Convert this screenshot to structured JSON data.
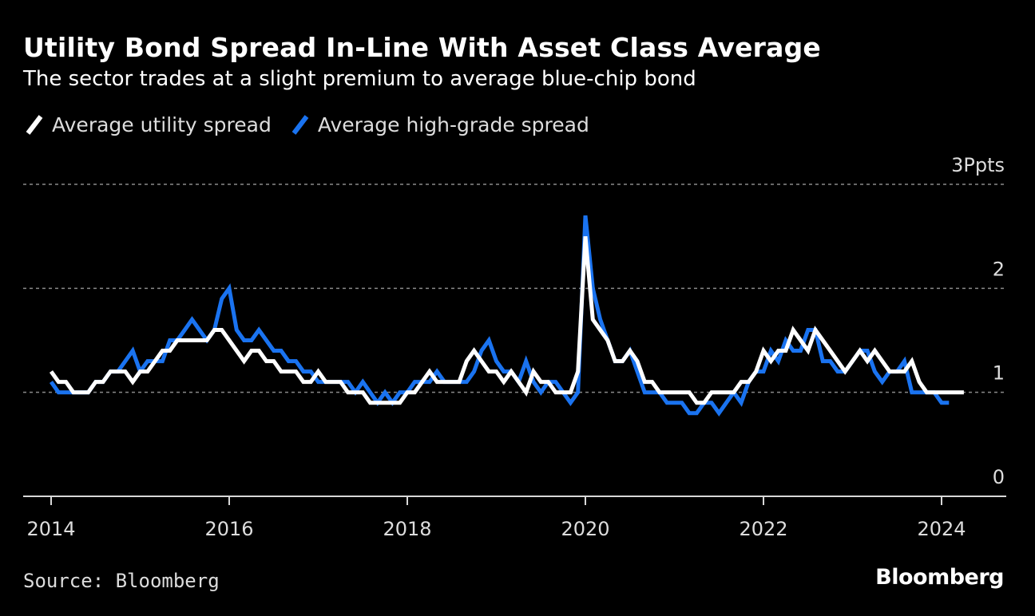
{
  "header": {
    "title": "Utility Bond Spread In-Line With Asset Class Average",
    "subtitle": "The sector trades at a slight premium to average blue-chip bond"
  },
  "footer": {
    "source": "Source: Bloomberg",
    "logo": "Bloomberg"
  },
  "chart_data": {
    "type": "line",
    "title": "Utility Bond Spread In-Line With Asset Class Average",
    "subtitle": "The sector trades at a slight premium to average blue-chip bond",
    "xlabel": "",
    "ylabel": "Ppts",
    "y_unit_label": "3Ppts",
    "ylim": [
      0,
      3
    ],
    "yticks": [
      0,
      1,
      2,
      3
    ],
    "ytick_labels": [
      "0",
      "1",
      "2",
      "3Ppts"
    ],
    "xlim": [
      "2014-01",
      "2025-05"
    ],
    "xticks": [
      "2014",
      "2016",
      "2018",
      "2020",
      "2022",
      "2024"
    ],
    "grid": true,
    "legend": "top-left",
    "x_start": "2014-01",
    "x_frequency": "monthly",
    "series": [
      {
        "name": "Average utility spread",
        "color": "#ffffff",
        "values": [
          1.2,
          1.1,
          1.1,
          1.0,
          1.0,
          1.0,
          1.1,
          1.1,
          1.2,
          1.2,
          1.2,
          1.1,
          1.2,
          1.2,
          1.3,
          1.4,
          1.4,
          1.5,
          1.5,
          1.5,
          1.5,
          1.5,
          1.6,
          1.6,
          1.5,
          1.4,
          1.3,
          1.4,
          1.4,
          1.3,
          1.3,
          1.2,
          1.2,
          1.2,
          1.1,
          1.1,
          1.2,
          1.1,
          1.1,
          1.1,
          1.0,
          1.0,
          1.0,
          0.9,
          0.9,
          0.9,
          0.9,
          0.9,
          1.0,
          1.0,
          1.1,
          1.2,
          1.1,
          1.1,
          1.1,
          1.1,
          1.3,
          1.4,
          1.3,
          1.2,
          1.2,
          1.1,
          1.2,
          1.1,
          1.0,
          1.2,
          1.1,
          1.1,
          1.0,
          1.0,
          1.0,
          1.2,
          2.5,
          1.7,
          1.6,
          1.5,
          1.3,
          1.3,
          1.4,
          1.3,
          1.1,
          1.1,
          1.0,
          1.0,
          1.0,
          1.0,
          1.0,
          0.9,
          0.9,
          1.0,
          1.0,
          1.0,
          1.0,
          1.1,
          1.1,
          1.2,
          1.4,
          1.3,
          1.4,
          1.4,
          1.6,
          1.5,
          1.4,
          1.6,
          1.5,
          1.4,
          1.3,
          1.2,
          1.3,
          1.4,
          1.3,
          1.4,
          1.3,
          1.2,
          1.2,
          1.2,
          1.3,
          1.1,
          1.0,
          1.0,
          1.0,
          1.0,
          1.0,
          1.0
        ]
      },
      {
        "name": "Average high-grade spread",
        "color": "#1a73f0",
        "values": [
          1.1,
          1.0,
          1.0,
          1.0,
          1.0,
          1.0,
          1.1,
          1.1,
          1.2,
          1.2,
          1.3,
          1.4,
          1.2,
          1.3,
          1.3,
          1.3,
          1.5,
          1.5,
          1.6,
          1.7,
          1.6,
          1.5,
          1.6,
          1.9,
          2.0,
          1.6,
          1.5,
          1.5,
          1.6,
          1.5,
          1.4,
          1.4,
          1.3,
          1.3,
          1.2,
          1.2,
          1.1,
          1.1,
          1.1,
          1.1,
          1.1,
          1.0,
          1.1,
          1.0,
          0.9,
          1.0,
          0.9,
          1.0,
          1.0,
          1.1,
          1.1,
          1.1,
          1.2,
          1.1,
          1.1,
          1.1,
          1.1,
          1.2,
          1.4,
          1.5,
          1.3,
          1.2,
          1.2,
          1.1,
          1.3,
          1.1,
          1.0,
          1.1,
          1.1,
          1.0,
          0.9,
          1.0,
          2.7,
          2.0,
          1.7,
          1.5,
          1.3,
          1.3,
          1.4,
          1.2,
          1.0,
          1.0,
          1.0,
          0.9,
          0.9,
          0.9,
          0.8,
          0.8,
          0.9,
          0.9,
          0.8,
          0.9,
          1.0,
          0.9,
          1.1,
          1.2,
          1.2,
          1.4,
          1.3,
          1.5,
          1.4,
          1.4,
          1.6,
          1.6,
          1.3,
          1.3,
          1.2,
          1.2,
          1.3,
          1.4,
          1.4,
          1.2,
          1.1,
          1.2,
          1.2,
          1.3,
          1.0,
          1.0,
          1.0,
          1.0,
          0.9,
          0.9
        ]
      }
    ]
  }
}
